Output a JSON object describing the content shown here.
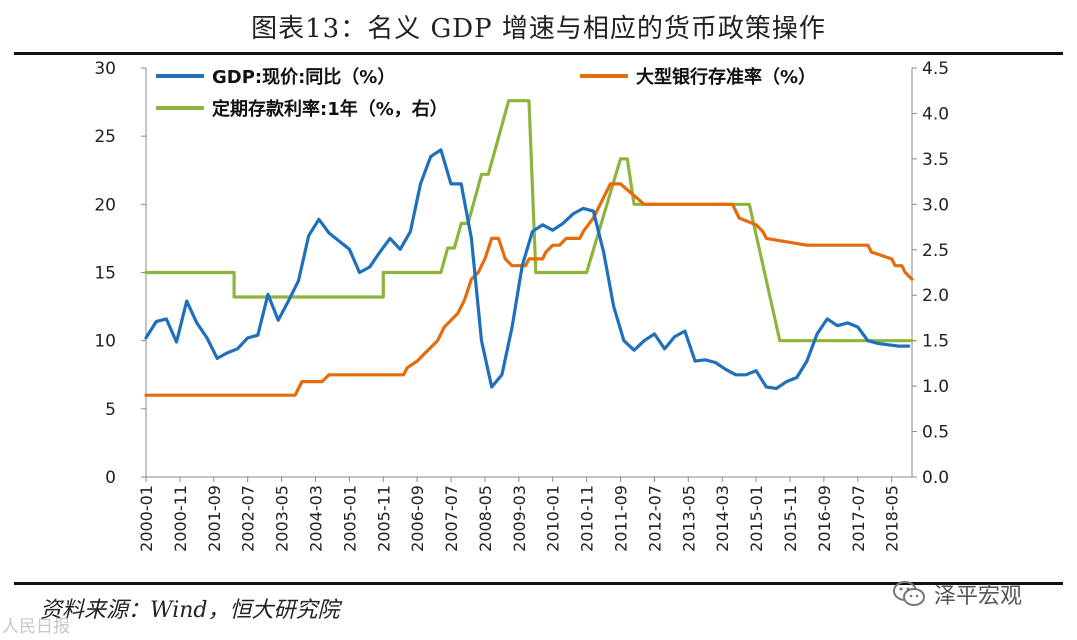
{
  "header": {
    "title": "图表13：名义 GDP 增速与相应的货币政策操作"
  },
  "footer": {
    "source": "资料来源：Wind，恒大研究院",
    "watermark": "泽平宏观",
    "watermark_bottom": "人民日报"
  },
  "chart_data": {
    "type": "line",
    "title": "图表13：名义 GDP 增速与相应的货币政策操作",
    "x_tick_labels": [
      "2000-01",
      "2000-11",
      "2001-09",
      "2002-07",
      "2003-05",
      "2004-03",
      "2005-01",
      "2005-11",
      "2006-09",
      "2007-07",
      "2008-05",
      "2009-03",
      "2010-01",
      "2010-11",
      "2011-09",
      "2012-07",
      "2013-05",
      "2014-03",
      "2015-01",
      "2015-11",
      "2016-09",
      "2017-07",
      "2018-05"
    ],
    "x_range_months": [
      0,
      226
    ],
    "y_left": {
      "range": [
        0,
        30
      ],
      "ticks": [
        0,
        5,
        10,
        15,
        20,
        25,
        30
      ]
    },
    "y_right": {
      "range": [
        0,
        4.5
      ],
      "ticks": [
        "0.0",
        "0.5",
        "1.0",
        "1.5",
        "2.0",
        "2.5",
        "3.0",
        "3.5",
        "4.0",
        "4.5"
      ]
    },
    "legend_position": "top",
    "series": [
      {
        "name": "GDP:现价:同比（%）",
        "color": "#1F6FBA",
        "axis": "left",
        "x": [
          0,
          3,
          6,
          9,
          12,
          15,
          18,
          21,
          24,
          27,
          30,
          33,
          36,
          39,
          42,
          45,
          48,
          51,
          54,
          57,
          60,
          63,
          66,
          69,
          72,
          75,
          78,
          81,
          84,
          87,
          90,
          93,
          96,
          99,
          102,
          105,
          108,
          111,
          114,
          117,
          120,
          123,
          126,
          129,
          132,
          135,
          138,
          141,
          144,
          147,
          150,
          153,
          156,
          159,
          162,
          165,
          168,
          171,
          174,
          177,
          180,
          183,
          186,
          189,
          192,
          195,
          198,
          201,
          204,
          207,
          210,
          213,
          216,
          219,
          222,
          225
        ],
        "values": [
          10.2,
          11.4,
          11.6,
          9.9,
          12.9,
          11.3,
          10.2,
          8.7,
          9.1,
          9.4,
          10.2,
          10.4,
          13.4,
          11.5,
          12.9,
          14.4,
          17.7,
          18.9,
          17.9,
          17.3,
          16.7,
          15.0,
          15.4,
          16.5,
          17.5,
          16.7,
          18.0,
          21.5,
          23.5,
          24.0,
          21.5,
          21.5,
          17.5,
          10.0,
          6.6,
          7.5,
          11.0,
          15.5,
          18.0,
          18.5,
          18.1,
          18.6,
          19.3,
          19.7,
          19.5,
          16.5,
          12.5,
          10.0,
          9.3,
          10.0,
          10.5,
          9.4,
          10.3,
          10.7,
          8.5,
          8.6,
          8.4,
          7.9,
          7.5,
          7.5,
          7.8,
          6.6,
          6.5,
          7.0,
          7.3,
          8.5,
          10.5,
          11.6,
          11.1,
          11.3,
          11.0,
          10.0,
          9.8,
          9.7,
          9.6,
          9.6
        ]
      },
      {
        "name": "大型银行存准率（%）",
        "color": "#E46C0A",
        "axis": "left",
        "x": [
          0,
          44,
          46,
          52,
          54,
          76,
          77,
          80,
          82,
          84,
          86,
          88,
          90,
          92,
          94,
          96,
          98,
          100,
          102,
          104,
          106,
          108,
          112,
          113,
          117,
          118,
          120,
          122,
          124,
          128,
          129,
          132,
          136,
          137,
          140,
          147,
          165,
          169,
          173,
          174,
          175,
          180,
          182,
          183,
          195,
          202,
          213,
          214,
          220,
          221,
          223,
          224,
          226
        ],
        "values": [
          6,
          6,
          7,
          7,
          7.5,
          7.5,
          8,
          8.5,
          9,
          9.5,
          10,
          11,
          11.5,
          12,
          13,
          14.5,
          15,
          16,
          17.5,
          17.5,
          16,
          15.5,
          15.5,
          16,
          16,
          16.5,
          17,
          17,
          17.5,
          17.5,
          18,
          19,
          21,
          21.5,
          21.5,
          20,
          20,
          20,
          20,
          19.5,
          19,
          18.5,
          18,
          17.5,
          17,
          17,
          17,
          16.5,
          16,
          15.5,
          15.5,
          15,
          14.5
        ]
      },
      {
        "name": "定期存款利率:1年（%，右）",
        "color": "#8DB53E",
        "axis": "right",
        "x": [
          0,
          26,
          26,
          70,
          70,
          87,
          89,
          91,
          93,
          95,
          97,
          99,
          101,
          103,
          105,
          107,
          109,
          111,
          113,
          115,
          117,
          119,
          121,
          123,
          125,
          130,
          132,
          134,
          136,
          138,
          140,
          142,
          144,
          178,
          181,
          184,
          187,
          226
        ],
        "values": [
          2.25,
          2.25,
          1.98,
          1.98,
          2.25,
          2.25,
          2.52,
          2.52,
          2.79,
          2.79,
          3.06,
          3.33,
          3.33,
          3.6,
          3.87,
          4.14,
          4.14,
          4.14,
          4.14,
          2.25,
          2.25,
          2.25,
          2.25,
          2.25,
          2.25,
          2.25,
          2.5,
          2.75,
          3.0,
          3.25,
          3.5,
          3.5,
          3.0,
          3.0,
          2.5,
          2.0,
          1.5,
          1.5
        ]
      }
    ]
  }
}
